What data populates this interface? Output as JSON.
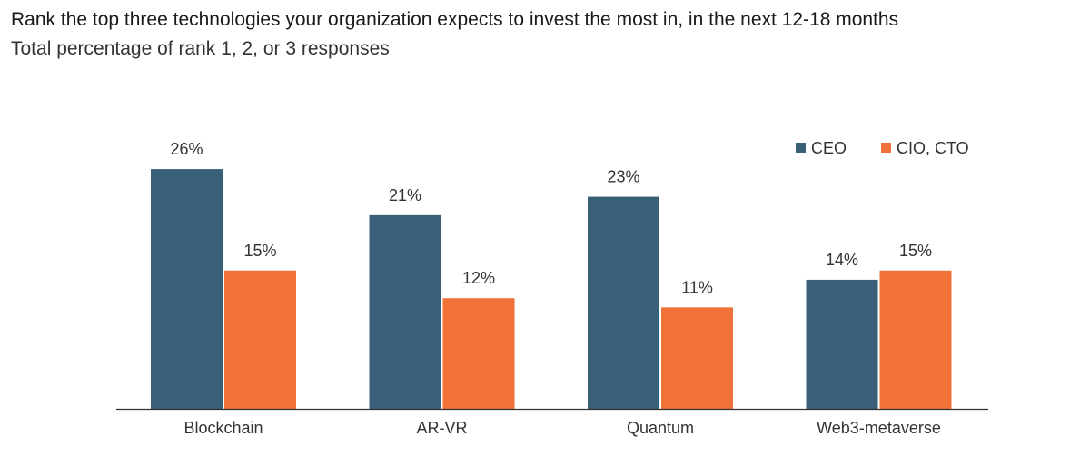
{
  "title": "Rank the top three technologies your organization expects to invest the most in, in the next 12-18 months",
  "subtitle": "Total percentage of rank 1, 2, or 3 responses",
  "chart_data": {
    "type": "bar",
    "title": "Rank the top three technologies your organization expects to invest the most in, in the next 12-18 months",
    "subtitle": "Total percentage of rank 1, 2, or 3 responses",
    "categories": [
      "Blockchain",
      "AR-VR",
      "Quantum",
      "Web3-metaverse"
    ],
    "series": [
      {
        "name": "CEO",
        "values": [
          26,
          21,
          23,
          14
        ],
        "color": "#3a5f78"
      },
      {
        "name": "CIO, CTO",
        "values": [
          15,
          12,
          11,
          15
        ],
        "color": "#f07238"
      }
    ],
    "value_format": "%",
    "ylim": [
      0,
      26
    ],
    "grid": false,
    "legend": "top-right",
    "xlabel": "",
    "ylabel": ""
  }
}
